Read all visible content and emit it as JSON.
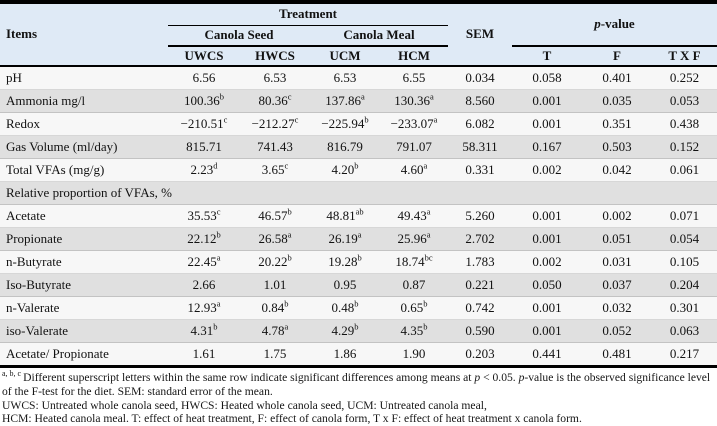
{
  "colors": {
    "header_bg": "#dfeaf6",
    "row_light": "#f7f7f7",
    "row_gray": "#e0e0e0",
    "rule": "#000000"
  },
  "table": {
    "header": {
      "items": "Items",
      "treatment": "Treatment",
      "canola_seed": "Canola Seed",
      "canola_meal": "Canola Meal",
      "sem": "SEM",
      "p_value_italic": "p",
      "p_value_rest": "-value",
      "sub_columns": [
        "UWCS",
        "HWCS",
        "UCM",
        "HCM"
      ],
      "p_columns": [
        "T",
        "F",
        "T X F"
      ]
    },
    "rows": [
      {
        "label": "pH",
        "cells": [
          {
            "v": "6.56"
          },
          {
            "v": "6.53"
          },
          {
            "v": "6.53"
          },
          {
            "v": "6.55"
          },
          {
            "v": "0.034"
          },
          {
            "v": "0.058"
          },
          {
            "v": "0.401"
          },
          {
            "v": "0.252"
          }
        ]
      },
      {
        "label": "Ammonia mg/l",
        "cells": [
          {
            "v": "100.36",
            "s": "b"
          },
          {
            "v": "80.36",
            "s": "c"
          },
          {
            "v": "137.86",
            "s": "a"
          },
          {
            "v": "130.36",
            "s": "a"
          },
          {
            "v": "8.560"
          },
          {
            "v": "0.001"
          },
          {
            "v": "0.035"
          },
          {
            "v": "0.053"
          }
        ]
      },
      {
        "label": "Redox",
        "cells": [
          {
            "v": "−210.51",
            "s": "c"
          },
          {
            "v": "−212.27",
            "s": "c"
          },
          {
            "v": "−225.94",
            "s": "b"
          },
          {
            "v": "−233.07",
            "s": "a"
          },
          {
            "v": "6.082"
          },
          {
            "v": "0.001"
          },
          {
            "v": "0.351"
          },
          {
            "v": "0.438"
          }
        ]
      },
      {
        "label": "Gas Volume (ml/day)",
        "cells": [
          {
            "v": "815.71"
          },
          {
            "v": "741.43"
          },
          {
            "v": "816.79"
          },
          {
            "v": "791.07"
          },
          {
            "v": "58.311"
          },
          {
            "v": "0.167"
          },
          {
            "v": "0.503"
          },
          {
            "v": "0.152"
          }
        ]
      },
      {
        "label": "Total VFAs (mg/g)",
        "cells": [
          {
            "v": "2.23",
            "s": "d"
          },
          {
            "v": "3.65",
            "s": "c"
          },
          {
            "v": "4.20",
            "s": "b"
          },
          {
            "v": "4.60",
            "s": "a"
          },
          {
            "v": "0.331"
          },
          {
            "v": "0.002"
          },
          {
            "v": "0.042"
          },
          {
            "v": "0.061"
          }
        ]
      },
      {
        "section": "Relative proportion of VFAs, %"
      },
      {
        "label": "Acetate",
        "cells": [
          {
            "v": "35.53",
            "s": "c"
          },
          {
            "v": "46.57",
            "s": "b"
          },
          {
            "v": "48.81",
            "s": "ab"
          },
          {
            "v": "49.43",
            "s": "a"
          },
          {
            "v": "5.260"
          },
          {
            "v": "0.001"
          },
          {
            "v": "0.002"
          },
          {
            "v": "0.071"
          }
        ]
      },
      {
        "label": "Propionate",
        "cells": [
          {
            "v": "22.12",
            "s": "b"
          },
          {
            "v": "26.58",
            "s": "a"
          },
          {
            "v": "26.19",
            "s": "a"
          },
          {
            "v": "25.96",
            "s": "a"
          },
          {
            "v": "2.702"
          },
          {
            "v": "0.001"
          },
          {
            "v": "0.051"
          },
          {
            "v": "0.054"
          }
        ]
      },
      {
        "label": "n-Butyrate",
        "cells": [
          {
            "v": "22.45",
            "s": "a"
          },
          {
            "v": "20.22",
            "s": "b"
          },
          {
            "v": "19.28",
            "s": "b"
          },
          {
            "v": "18.74",
            "s": "bc"
          },
          {
            "v": "1.783"
          },
          {
            "v": "0.002"
          },
          {
            "v": "0.031"
          },
          {
            "v": "0.105"
          }
        ]
      },
      {
        "label": "Iso-Butyrate",
        "cells": [
          {
            "v": "2.66"
          },
          {
            "v": "1.01"
          },
          {
            "v": "0.95"
          },
          {
            "v": "0.87"
          },
          {
            "v": "0.221"
          },
          {
            "v": "0.050"
          },
          {
            "v": "0.037"
          },
          {
            "v": "0.204"
          }
        ]
      },
      {
        "label": "n-Valerate",
        "cells": [
          {
            "v": "12.93",
            "s": "a"
          },
          {
            "v": "0.84",
            "s": "b"
          },
          {
            "v": "0.48",
            "s": "b"
          },
          {
            "v": "0.65",
            "s": "b"
          },
          {
            "v": "0.742"
          },
          {
            "v": "0.001"
          },
          {
            "v": "0.032"
          },
          {
            "v": "0.301"
          }
        ]
      },
      {
        "label": "iso-Valerate",
        "cells": [
          {
            "v": "4.31",
            "s": "b"
          },
          {
            "v": "4.78",
            "s": "a"
          },
          {
            "v": "4.29",
            "s": "b"
          },
          {
            "v": "4.35",
            "s": "b"
          },
          {
            "v": "0.590"
          },
          {
            "v": "0.001"
          },
          {
            "v": "0.052"
          },
          {
            "v": "0.063"
          }
        ]
      },
      {
        "label": "Acetate/ Propionate",
        "cells": [
          {
            "v": "1.61"
          },
          {
            "v": "1.75"
          },
          {
            "v": "1.86"
          },
          {
            "v": "1.90"
          },
          {
            "v": "0.203"
          },
          {
            "v": "0.441"
          },
          {
            "v": "0.481"
          },
          {
            "v": "0.217"
          }
        ]
      }
    ]
  },
  "footnotes": [
    [
      {
        "style": "sup",
        "text": "a, b, c "
      },
      {
        "style": "",
        "text": "Different superscript letters within the same row indicate significant differences among means at "
      },
      {
        "style": "i",
        "text": "p"
      },
      {
        "style": "",
        "text": " < 0.05. "
      },
      {
        "style": "i",
        "text": "p"
      },
      {
        "style": "",
        "text": "-value is the observed significance level of the F-test for the diet. SEM: standard error of the mean."
      }
    ],
    [
      {
        "style": "",
        "text": "UWCS: Untreated whole canola seed, HWCS: Heated whole canola seed, UCM: Untreated canola meal,"
      }
    ],
    [
      {
        "style": "",
        "text": "HCM: Heated canola meal. T: effect of heat treatment, F: effect of canola form, T x F: effect of heat treatment x canola form."
      }
    ]
  ]
}
